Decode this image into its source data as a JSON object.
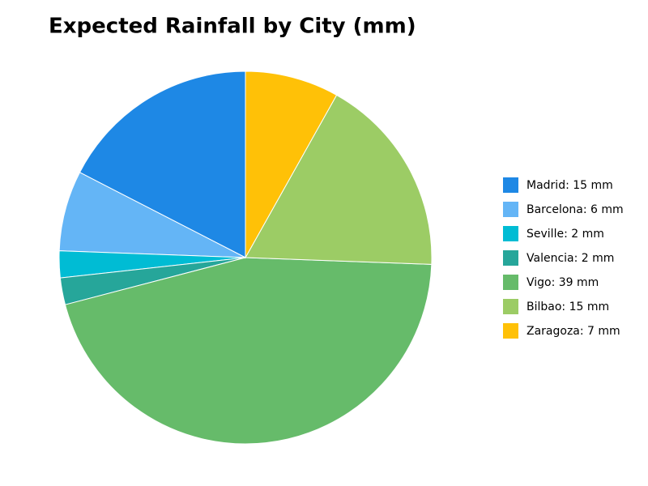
{
  "chart_data": {
    "type": "pie",
    "title": "Expected Rainfall by City (mm)",
    "categories": [
      "Madrid: 15 mm",
      "Barcelona: 6 mm",
      "Seville: 2 mm",
      "Valencia: 2 mm",
      "Vigo: 39 mm",
      "Bilbao: 15 mm",
      "Zaragoza: 7 mm"
    ],
    "values": [
      15,
      6,
      2,
      2,
      39,
      15,
      7
    ],
    "colors": [
      "#1e88e5",
      "#64b5f6",
      "#00bcd4",
      "#26a69a",
      "#66bb6a",
      "#9ccc65",
      "#ffc107"
    ],
    "legend": "right"
  }
}
